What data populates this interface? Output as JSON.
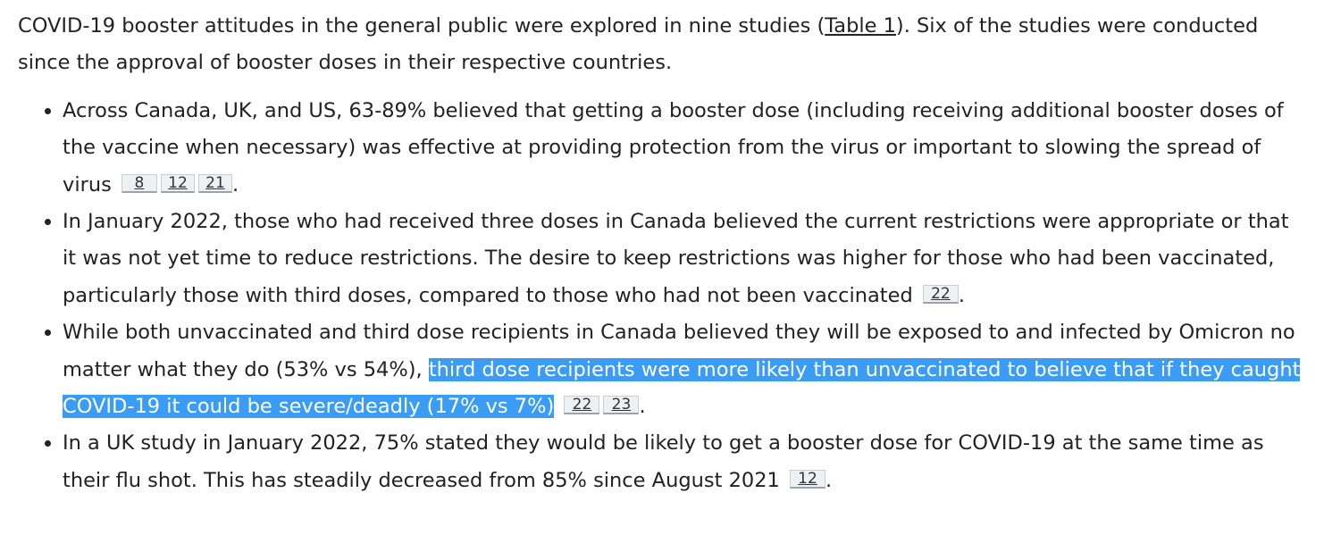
{
  "intro": {
    "before_link": "COVID-19 booster attitudes in the general public were explored in nine studies (",
    "link_text": "Table 1",
    "after_link": "). Six of the studies were conducted since the approval of booster doses in their respective countries."
  },
  "findings": [
    {
      "text": "Across Canada, UK, and US, 63-89% believed that getting a booster dose (including receiving additional booster doses of the vaccine when necessary) was effective at providing protection from the virus or important to slowing the spread of virus",
      "refs": [
        "8",
        "12",
        "21"
      ],
      "end": "."
    },
    {
      "text": "In January 2022, those who had received three doses in Canada believed the current restrictions were appropriate or that it was not yet time to reduce restrictions. The desire to keep restrictions was higher for those who had been vaccinated, particularly those with third doses, compared to those who had not been vaccinated",
      "refs": [
        "22"
      ],
      "end": "."
    },
    {
      "text": "While both unvaccinated and third dose recipients in Canada believed they will be exposed to and infected by Omicron no matter what they do (53% vs 54%), ",
      "highlighted": "third dose recipients were more likely than unvaccinated to believe that if they caught COVID-19 it could be severe/deadly (17% vs 7%)",
      "refs": [
        "22",
        "23"
      ],
      "end": "."
    },
    {
      "text": "In a UK study in January 2022, 75% stated they would be likely to get a booster dose for COVID-19 at the same time as their flu shot. This has steadily decreased from 85% since August 2021",
      "refs": [
        "12"
      ],
      "end": "."
    }
  ]
}
